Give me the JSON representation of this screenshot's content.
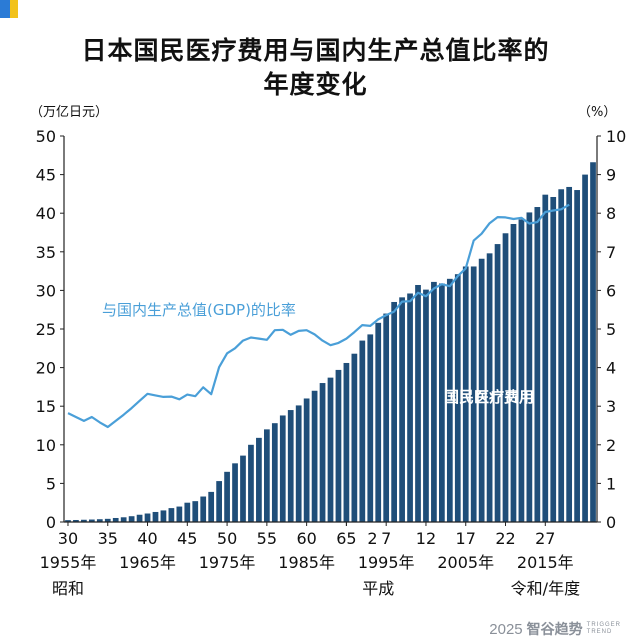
{
  "title_line1": "日本国民医疗费用与国内生产总值比率的",
  "title_line2": "年度变化",
  "brand": {
    "year": "2025",
    "name": "智谷趋势",
    "tag1": "TRIGGER",
    "tag2": "TREND"
  },
  "chart_data": {
    "type": "bar+line",
    "left_unit": "（万亿日元）",
    "right_unit": "（%）",
    "left_axis": {
      "min": 0,
      "max": 50,
      "ticks": [
        "0",
        "5",
        "10",
        "15",
        "20",
        "25",
        "30",
        "35",
        "40",
        "45",
        "50"
      ]
    },
    "right_axis": {
      "min": 0,
      "max": 10,
      "ticks": [
        "0",
        "1",
        "2",
        "3",
        "4",
        "5",
        "6",
        "7",
        "8",
        "9",
        "10"
      ]
    },
    "x_tick_labels": [
      {
        "year": 1955,
        "label": "30"
      },
      {
        "year": 1960,
        "label": "35"
      },
      {
        "year": 1965,
        "label": "40"
      },
      {
        "year": 1970,
        "label": "45"
      },
      {
        "year": 1975,
        "label": "50"
      },
      {
        "year": 1980,
        "label": "55"
      },
      {
        "year": 1985,
        "label": "60"
      },
      {
        "year": 1990,
        "label": "65"
      },
      {
        "year": 1990,
        "label": "2"
      },
      {
        "year": 1995,
        "label": "7"
      },
      {
        "year": 2000,
        "label": "12"
      },
      {
        "year": 2005,
        "label": "17"
      },
      {
        "year": 2010,
        "label": "22"
      },
      {
        "year": 2015,
        "label": "27"
      }
    ],
    "x_year_labels": [
      {
        "year": 1955,
        "label": "1955年"
      },
      {
        "year": 1965,
        "label": "1965年"
      },
      {
        "year": 1975,
        "label": "1975年"
      },
      {
        "year": 1985,
        "label": "1985年"
      },
      {
        "year": 1995,
        "label": "1995年"
      },
      {
        "year": 2005,
        "label": "2005年"
      },
      {
        "year": 2015,
        "label": "2015年"
      }
    ],
    "era_labels": [
      {
        "year": 1955,
        "label": "昭和"
      },
      {
        "year": 1994,
        "label": "平成"
      },
      {
        "year": 2013,
        "label": "令和/年度"
      }
    ],
    "series": [
      {
        "name": "国民医疗费用",
        "axis": "left",
        "kind": "bar",
        "color": "#1f4e79",
        "years": [
          1955,
          1956,
          1957,
          1958,
          1959,
          1960,
          1961,
          1962,
          1963,
          1964,
          1965,
          1966,
          1967,
          1968,
          1969,
          1970,
          1971,
          1972,
          1973,
          1974,
          1975,
          1976,
          1977,
          1978,
          1979,
          1980,
          1981,
          1982,
          1983,
          1984,
          1985,
          1986,
          1987,
          1988,
          1989,
          1990,
          1991,
          1992,
          1993,
          1994,
          1995,
          1996,
          1997,
          1998,
          1999,
          2000,
          2001,
          2002,
          2003,
          2004,
          2005,
          2006,
          2007,
          2008,
          2009,
          2010,
          2011,
          2012,
          2013,
          2014,
          2015,
          2016,
          2017,
          2018
        ],
        "values": [
          0.24,
          0.26,
          0.29,
          0.32,
          0.36,
          0.41,
          0.52,
          0.61,
          0.75,
          0.94,
          1.1,
          1.3,
          1.5,
          1.8,
          2.0,
          2.5,
          2.7,
          3.3,
          3.9,
          5.3,
          6.5,
          7.6,
          8.6,
          10.0,
          10.9,
          12.0,
          12.8,
          13.8,
          14.5,
          15.1,
          16.0,
          17.0,
          18.0,
          18.7,
          19.7,
          20.6,
          21.8,
          23.5,
          24.3,
          25.8,
          27.0,
          28.5,
          29.1,
          29.6,
          30.7,
          30.1,
          31.1,
          30.9,
          31.5,
          32.1,
          33.1,
          33.1,
          34.1,
          34.8,
          36.0,
          37.4,
          38.6,
          39.2,
          40.1,
          40.8,
          42.4,
          42.1,
          43.1,
          43.4
        ]
      },
      {
        "name": "与国内生产总值(GDP)的比率",
        "axis": "right",
        "kind": "line",
        "color": "#4a9fd8",
        "years": [
          1955,
          1956,
          1957,
          1958,
          1959,
          1960,
          1961,
          1962,
          1963,
          1964,
          1965,
          1966,
          1967,
          1968,
          1969,
          1970,
          1971,
          1972,
          1973,
          1974,
          1975,
          1976,
          1977,
          1978,
          1979,
          1980,
          1981,
          1982,
          1983,
          1984,
          1985,
          1986,
          1987,
          1988,
          1989,
          1990,
          1991,
          1992,
          1993,
          1994,
          1995,
          1996,
          1997,
          1998,
          1999,
          2000,
          2001,
          2002,
          2003,
          2004,
          2005,
          2006,
          2007,
          2008,
          2009,
          2010,
          2011,
          2012,
          2013,
          2014,
          2015,
          2016,
          2017,
          2018
        ],
        "values": [
          2.82,
          2.72,
          2.62,
          2.72,
          2.58,
          2.46,
          2.62,
          2.78,
          2.95,
          3.14,
          3.32,
          3.28,
          3.24,
          3.25,
          3.18,
          3.3,
          3.26,
          3.49,
          3.31,
          4.01,
          4.37,
          4.5,
          4.7,
          4.78,
          4.75,
          4.72,
          4.97,
          4.98,
          4.85,
          4.95,
          4.97,
          4.86,
          4.7,
          4.58,
          4.64,
          4.75,
          4.92,
          5.1,
          5.08,
          5.25,
          5.36,
          5.45,
          5.71,
          5.72,
          5.94,
          5.85,
          6.05,
          6.16,
          6.11,
          6.37,
          6.57,
          7.29,
          7.47,
          7.74,
          7.9,
          7.89,
          7.85,
          7.88,
          7.73,
          7.77,
          8.03,
          8.07,
          8.1,
          8.22
        ]
      }
    ],
    "extra_bars": [
      {
        "year": 2019,
        "value": 43.0
      },
      {
        "year": 2020,
        "value": 45.0
      },
      {
        "year": 2021,
        "value": 46.6
      }
    ],
    "annotations": [
      {
        "text": "与国内生产总值(GDP)的比率",
        "target": "line"
      },
      {
        "text": "国民医疗费用",
        "target": "bars"
      }
    ]
  }
}
